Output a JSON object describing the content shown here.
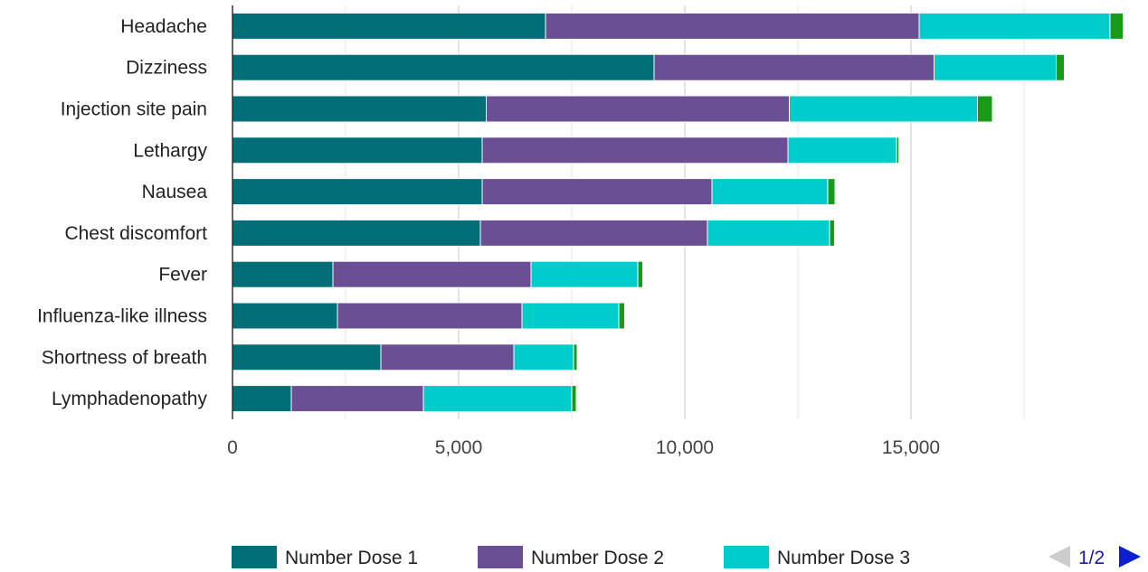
{
  "chart_data": {
    "type": "bar",
    "orientation": "horizontal",
    "stacked": true,
    "categories": [
      "Headache",
      "Dizziness",
      "Injection site pain",
      "Lethargy",
      "Nausea",
      "Chest discomfort",
      "Fever",
      "Influenza-like illness",
      "Shortness of breath",
      "Lymphadenopathy"
    ],
    "series": [
      {
        "name": "Number Dose 1",
        "color": "#006d77",
        "values": [
          6920,
          9320,
          5610,
          5520,
          5520,
          5480,
          2220,
          2320,
          3280,
          1300
        ]
      },
      {
        "name": "Number Dose 2",
        "color": "#6b4f94",
        "values": [
          8260,
          6190,
          6700,
          6760,
          5080,
          5020,
          4380,
          4080,
          2940,
          2920
        ]
      },
      {
        "name": "Number Dose 3",
        "color": "#00cccc",
        "values": [
          4220,
          2700,
          4160,
          2400,
          2560,
          2700,
          2360,
          2140,
          1320,
          3280
        ]
      },
      {
        "name": "",
        "color": "#1a9a1a",
        "values": [
          290,
          180,
          330,
          50,
          160,
          110,
          110,
          130,
          80,
          100
        ]
      }
    ],
    "xlim": [
      0,
      20000
    ],
    "xticks": [
      0,
      5000,
      10000,
      15000
    ],
    "xtick_labels": [
      "0",
      "5,000",
      "10,000",
      "15,000"
    ],
    "grid": true,
    "legend_position": "bottom",
    "legend_entries": [
      "Number Dose 1",
      "Number Dose 2",
      "Number Dose 3"
    ]
  },
  "legend_pager": {
    "text": "1/2",
    "prev_color": "#cccccc",
    "next_color": "#0b1fd1"
  }
}
